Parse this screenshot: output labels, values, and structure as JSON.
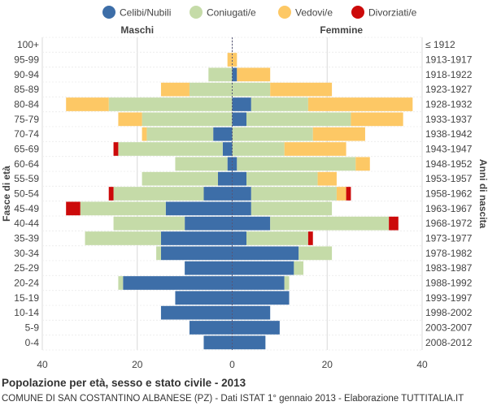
{
  "chart_data": {
    "type": "bar",
    "title": "Popolazione per età, sesso e stato civile - 2013",
    "subtitle": "COMUNE DI SAN COSTANTINO ALBANESE (PZ) - Dati ISTAT 1° gennaio 2013 - Elaborazione TUTTITALIA.IT",
    "left_header": "Maschi",
    "right_header": "Femmine",
    "ylabel_left": "Fasce di età",
    "ylabel_right": "Anni di nascita",
    "xlim": [
      -40,
      40
    ],
    "x_ticks": [
      -40,
      -20,
      0,
      20,
      40
    ],
    "x_tick_labels": [
      "40",
      "20",
      "0",
      "20",
      "40"
    ],
    "legend": [
      {
        "key": "celibi",
        "label": "Celibi/Nubili",
        "color": "#3d6ea8"
      },
      {
        "key": "coniugati",
        "label": "Coniugati/e",
        "color": "#c5dba8"
      },
      {
        "key": "vedovi",
        "label": "Vedovi/e",
        "color": "#fdc865"
      },
      {
        "key": "divorziati",
        "label": "Divorziati/e",
        "color": "#cc0a0a"
      }
    ],
    "age_groups": [
      "100+",
      "95-99",
      "90-94",
      "85-89",
      "80-84",
      "75-79",
      "70-74",
      "65-69",
      "60-64",
      "55-59",
      "50-54",
      "45-49",
      "40-44",
      "35-39",
      "30-34",
      "25-29",
      "20-24",
      "15-19",
      "10-14",
      "5-9",
      "0-4"
    ],
    "birth_years": [
      "≤ 1912",
      "1913-1917",
      "1918-1922",
      "1923-1927",
      "1928-1932",
      "1933-1937",
      "1938-1942",
      "1943-1947",
      "1948-1952",
      "1953-1957",
      "1958-1962",
      "1963-1967",
      "1968-1972",
      "1973-1977",
      "1978-1982",
      "1983-1987",
      "1988-1992",
      "1993-1997",
      "1998-2002",
      "2003-2007",
      "2008-2012"
    ],
    "males": {
      "celibi": [
        0,
        0,
        0,
        0,
        0,
        0,
        4,
        2,
        1,
        3,
        6,
        14,
        10,
        15,
        15,
        10,
        23,
        12,
        15,
        9,
        6
      ],
      "coniugati": [
        0,
        0,
        5,
        9,
        26,
        19,
        14,
        22,
        11,
        16,
        19,
        18,
        15,
        16,
        1,
        0,
        1,
        0,
        0,
        0,
        0
      ],
      "vedovi": [
        0,
        1,
        0,
        6,
        9,
        5,
        1,
        0,
        0,
        0,
        0,
        0,
        0,
        0,
        0,
        0,
        0,
        0,
        0,
        0,
        0
      ],
      "divorziati": [
        0,
        0,
        0,
        0,
        0,
        0,
        0,
        1,
        0,
        0,
        1,
        3,
        0,
        0,
        0,
        0,
        0,
        0,
        0,
        0,
        0
      ]
    },
    "females": {
      "celibi": [
        0,
        0,
        1,
        0,
        4,
        3,
        0,
        0,
        1,
        3,
        4,
        4,
        8,
        3,
        14,
        13,
        11,
        12,
        8,
        10,
        7
      ],
      "coniugati": [
        0,
        0,
        0,
        8,
        12,
        22,
        17,
        11,
        25,
        15,
        18,
        17,
        25,
        13,
        7,
        2,
        1,
        0,
        0,
        0,
        0
      ],
      "vedovi": [
        0,
        1,
        7,
        13,
        22,
        11,
        11,
        13,
        3,
        4,
        2,
        0,
        0,
        0,
        0,
        0,
        0,
        0,
        0,
        0,
        0
      ],
      "divorziati": [
        0,
        0,
        0,
        0,
        0,
        0,
        0,
        0,
        0,
        0,
        1,
        0,
        2,
        1,
        0,
        0,
        0,
        0,
        0,
        0,
        0
      ]
    }
  }
}
